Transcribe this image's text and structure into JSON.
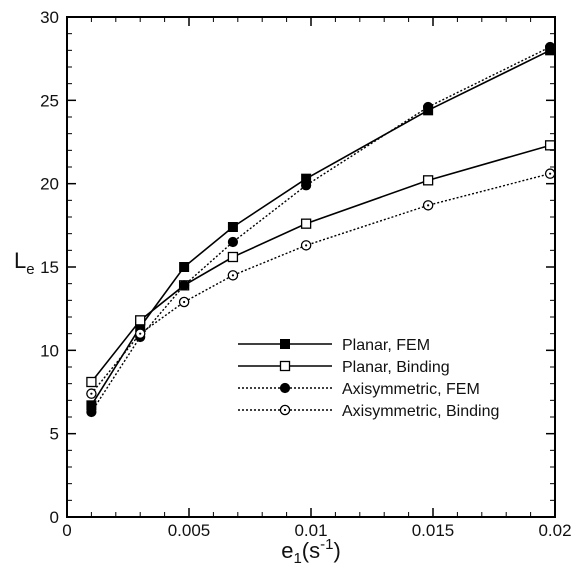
{
  "chart_data": {
    "type": "line",
    "xlabel": {
      "main": "e",
      "sub": "1",
      "unit_pre": "(s",
      "unit_sup": "-1",
      "unit_post": ")"
    },
    "ylabel": {
      "main": "L",
      "sub": "e"
    },
    "xlim": [
      0,
      0.02
    ],
    "ylim": [
      0,
      30
    ],
    "xticks": [
      {
        "v": 0,
        "label": "0"
      },
      {
        "v": 0.005,
        "label": "0.005"
      },
      {
        "v": 0.01,
        "label": "0.01"
      },
      {
        "v": 0.015,
        "label": "0.015"
      },
      {
        "v": 0.02,
        "label": "0.02"
      }
    ],
    "yticks": [
      {
        "v": 0,
        "label": "0"
      },
      {
        "v": 5,
        "label": "5"
      },
      {
        "v": 10,
        "label": "10"
      },
      {
        "v": 15,
        "label": "15"
      },
      {
        "v": 20,
        "label": "20"
      },
      {
        "v": 25,
        "label": "25"
      },
      {
        "v": 30,
        "label": "30"
      }
    ],
    "grid": false,
    "legend_position": "center-right",
    "series": [
      {
        "name": "Planar, FEM",
        "marker": "square-filled",
        "line": "solid",
        "points": [
          [
            0.001,
            6.7
          ],
          [
            0.003,
            11.4
          ],
          [
            0.0048,
            15.0
          ],
          [
            0.0068,
            17.4
          ],
          [
            0.0098,
            20.3
          ],
          [
            0.0148,
            24.4
          ],
          [
            0.0198,
            28.0
          ]
        ]
      },
      {
        "name": "Planar, Binding",
        "marker": "square-open",
        "line": "solid",
        "points": [
          [
            0.001,
            8.1
          ],
          [
            0.003,
            11.8
          ],
          [
            0.0048,
            13.9
          ],
          [
            0.0068,
            15.6
          ],
          [
            0.0098,
            17.6
          ],
          [
            0.0148,
            20.2
          ],
          [
            0.0198,
            22.3
          ]
        ]
      },
      {
        "name": "Axisymmetric, FEM",
        "marker": "circle-filled",
        "line": "dotted",
        "points": [
          [
            0.001,
            6.3
          ],
          [
            0.003,
            10.8
          ],
          [
            0.0048,
            13.9
          ],
          [
            0.0068,
            16.5
          ],
          [
            0.0098,
            19.9
          ],
          [
            0.0148,
            24.6
          ],
          [
            0.0198,
            28.2
          ]
        ]
      },
      {
        "name": "Axisymmetric, Binding",
        "marker": "circle-dot",
        "line": "dotted",
        "points": [
          [
            0.001,
            7.4
          ],
          [
            0.003,
            11.0
          ],
          [
            0.0048,
            12.9
          ],
          [
            0.0068,
            14.5
          ],
          [
            0.0098,
            16.3
          ],
          [
            0.0148,
            18.7
          ],
          [
            0.0198,
            20.6
          ]
        ]
      }
    ]
  }
}
